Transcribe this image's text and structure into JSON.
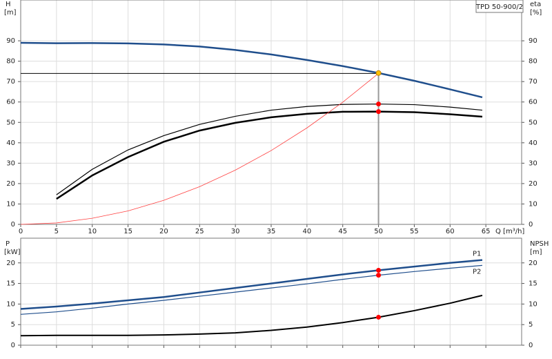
{
  "chart_data": [
    {
      "type": "line",
      "model": "TPD 50-900/2",
      "y_label": "H",
      "y_unit": "[m]",
      "y2_label": "eta",
      "y2_unit": "[%]",
      "x_label": "Q [m³/h]",
      "xlim": [
        0,
        70
      ],
      "xticks": [
        0,
        5,
        10,
        15,
        20,
        25,
        30,
        35,
        40,
        45,
        50,
        55,
        60,
        65
      ],
      "ylim": [
        0,
        110
      ],
      "yticks": [
        0,
        10,
        20,
        30,
        40,
        50,
        60,
        70,
        80,
        90
      ],
      "y2lim": [
        0,
        110
      ],
      "y2ticks": [
        0,
        10,
        20,
        30,
        40,
        50,
        60,
        70,
        80,
        90
      ],
      "grid": true,
      "reference": {
        "x": 50,
        "y": 74
      },
      "series": [
        {
          "color": "#1f4e8c",
          "line_width": 2.5,
          "x": [
            0,
            5,
            10,
            15,
            20,
            25,
            30,
            35,
            40,
            45,
            50,
            55,
            60,
            64.5
          ],
          "values": [
            89,
            88.8,
            88.9,
            88.7,
            88.2,
            87.2,
            85.5,
            83.3,
            80.6,
            77.6,
            74.2,
            70.4,
            66.2,
            62.3
          ]
        },
        {
          "color": "#000000",
          "line_width": 1.2,
          "axis": "y2",
          "x": [
            5,
            10,
            15,
            20,
            25,
            30,
            35,
            40,
            45,
            50,
            55,
            60,
            64.5
          ],
          "values": [
            14.5,
            27,
            36.5,
            43.5,
            49,
            53,
            56,
            57.8,
            58.8,
            59,
            58.7,
            57.5,
            56
          ]
        },
        {
          "color": "#000000",
          "line_width": 2.5,
          "axis": "y2",
          "x": [
            5,
            10,
            15,
            20,
            25,
            30,
            35,
            40,
            45,
            50,
            55,
            60,
            64.5
          ],
          "values": [
            12.5,
            24,
            33,
            40.5,
            46,
            49.8,
            52.5,
            54.2,
            55.2,
            55.3,
            55,
            54,
            52.8
          ]
        },
        {
          "color": "#ff4040",
          "line_width": 0.8,
          "x": [
            0,
            5,
            10,
            15,
            20,
            25,
            30,
            35,
            40,
            45,
            50
          ],
          "values": [
            0,
            0.7,
            3,
            6.6,
            11.8,
            18.5,
            26.6,
            36.2,
            47.3,
            59.9,
            74
          ]
        }
      ],
      "points": [
        {
          "x": 50,
          "y": 74.2,
          "color": "#ffc000"
        },
        {
          "x": 50,
          "y": 59,
          "color": "#ff0000"
        },
        {
          "x": 50,
          "y": 55.3,
          "color": "#ff0000"
        }
      ]
    },
    {
      "type": "line",
      "y_label": "P",
      "y_unit": "[kW]",
      "y2_label": "NPSH",
      "y2_unit": "[m]",
      "xlim": [
        0,
        70
      ],
      "xticks": [
        0,
        5,
        10,
        15,
        20,
        25,
        30,
        35,
        40,
        45,
        50,
        55,
        60,
        65
      ],
      "ylim": [
        0,
        26
      ],
      "yticks": [
        0,
        5,
        10,
        15,
        20
      ],
      "y2lim": [
        0,
        26
      ],
      "y2ticks": [
        0,
        5,
        10,
        15,
        20
      ],
      "grid": true,
      "series": [
        {
          "name": "P1",
          "color": "#1f4e8c",
          "line_width": 2.5,
          "x": [
            0,
            5,
            10,
            15,
            20,
            25,
            30,
            35,
            40,
            45,
            50,
            55,
            60,
            64.5
          ],
          "values": [
            8.8,
            9.4,
            10.1,
            10.9,
            11.7,
            12.8,
            13.9,
            15.0,
            16.1,
            17.2,
            18.2,
            19.1,
            20.0,
            20.7
          ]
        },
        {
          "name": "P2",
          "color": "#1f4e8c",
          "line_width": 1.2,
          "x": [
            0,
            5,
            10,
            15,
            20,
            25,
            30,
            35,
            40,
            45,
            50,
            55,
            60,
            64.5
          ],
          "values": [
            7.5,
            8.1,
            9.0,
            10.0,
            10.9,
            11.9,
            12.9,
            13.9,
            14.9,
            16.0,
            17.0,
            17.9,
            18.7,
            19.4
          ]
        },
        {
          "color": "#000000",
          "line_width": 2,
          "axis": "y2",
          "x": [
            0,
            5,
            10,
            15,
            20,
            25,
            30,
            35,
            40,
            45,
            50,
            55,
            60,
            64.5
          ],
          "values": [
            2.3,
            2.4,
            2.4,
            2.4,
            2.5,
            2.7,
            3.0,
            3.6,
            4.4,
            5.5,
            6.8,
            8.4,
            10.2,
            12.1
          ]
        }
      ],
      "points": [
        {
          "x": 50,
          "y": 18.2,
          "color": "#ff0000"
        },
        {
          "x": 50,
          "y": 17.0,
          "color": "#ff0000"
        },
        {
          "x": 50,
          "y": 6.8,
          "color": "#ff0000",
          "axis": "y2"
        }
      ]
    }
  ]
}
